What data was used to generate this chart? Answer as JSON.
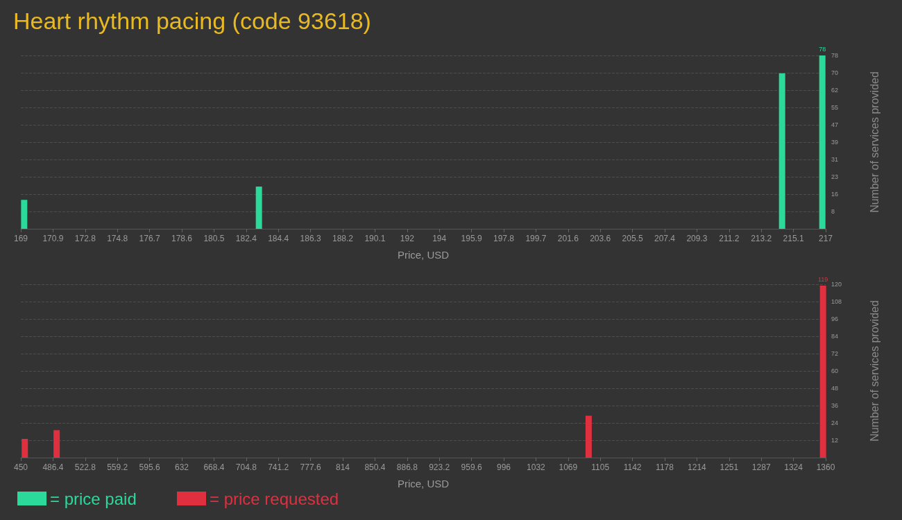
{
  "chart_data": [
    {
      "type": "bar",
      "title": "Heart rhythm pacing (code 93618)",
      "xlabel": "Price, USD",
      "ylabel": "Number of services provided",
      "x": [
        169.2,
        183.2,
        214.4,
        216.8
      ],
      "series": [
        {
          "name": "= price paid",
          "color": "#2bd99b",
          "values": [
            13,
            19,
            70,
            78
          ],
          "value_labels": [
            null,
            null,
            null,
            "78"
          ]
        }
      ],
      "xlim": [
        169,
        217
      ],
      "xticks": [
        169,
        {
          "value": 170.92,
          "label": "170.9"
        },
        {
          "value": 172.84,
          "label": "172.8"
        },
        {
          "value": 174.76,
          "label": "174.8"
        },
        {
          "value": 176.68,
          "label": "176.7"
        },
        178.6,
        {
          "value": 180.52,
          "label": "180.5"
        },
        {
          "value": 182.44,
          "label": "182.4"
        },
        {
          "value": 184.36,
          "label": "184.4"
        },
        {
          "value": 186.28,
          "label": "186.3"
        },
        188.2,
        {
          "value": 190.12,
          "label": "190.1"
        },
        {
          "value": 192.04,
          "label": "192"
        },
        {
          "value": 193.96,
          "label": "194"
        },
        {
          "value": 195.88,
          "label": "195.9"
        },
        197.8,
        {
          "value": 199.72,
          "label": "199.7"
        },
        {
          "value": 201.64,
          "label": "201.6"
        },
        {
          "value": 203.56,
          "label": "203.6"
        },
        {
          "value": 205.48,
          "label": "205.5"
        },
        207.4,
        {
          "value": 209.32,
          "label": "209.3"
        },
        {
          "value": 211.24,
          "label": "211.2"
        },
        {
          "value": 213.16,
          "label": "213.2"
        },
        {
          "value": 215.08,
          "label": "215.1"
        },
        217
      ],
      "ylim": [
        0,
        78
      ],
      "yticks": [
        {
          "value": 7.8,
          "label": "8"
        },
        {
          "value": 15.6,
          "label": "16"
        },
        {
          "value": 23.4,
          "label": "23"
        },
        {
          "value": 31.2,
          "label": "31"
        },
        39,
        {
          "value": 46.8,
          "label": "47"
        },
        {
          "value": 54.6,
          "label": "55"
        },
        {
          "value": 62.4,
          "label": "62"
        },
        {
          "value": 70.2,
          "label": "70"
        },
        78
      ],
      "grid": "y",
      "legend": "bottom left"
    },
    {
      "type": "bar",
      "xlabel": "Price, USD",
      "ylabel": "Number of services provided",
      "x": [
        454.5,
        490.5,
        1092,
        1357
      ],
      "series": [
        {
          "name": "= price requested",
          "color": "#e0303f",
          "values": [
            13,
            19,
            29,
            119
          ],
          "value_labels": [
            null,
            null,
            null,
            "119"
          ]
        }
      ],
      "xlim": [
        450,
        1360
      ],
      "xticks": [
        450,
        486.4,
        522.8,
        559.2,
        595.6,
        632,
        668.4,
        704.8,
        741.2,
        777.6,
        814,
        850.4,
        886.8,
        923.2,
        959.6,
        996,
        {
          "value": 1032.4,
          "label": "1032"
        },
        {
          "value": 1068.8,
          "label": "1069"
        },
        {
          "value": 1105.2,
          "label": "1105"
        },
        {
          "value": 1141.6,
          "label": "1142"
        },
        1178,
        {
          "value": 1214.4,
          "label": "1214"
        },
        {
          "value": 1250.8,
          "label": "1251"
        },
        {
          "value": 1287.2,
          "label": "1287"
        },
        {
          "value": 1323.6,
          "label": "1324"
        },
        1360
      ],
      "ylim": [
        0,
        120
      ],
      "yticks": [
        12,
        24,
        36,
        48,
        60,
        72,
        84,
        96,
        108,
        120
      ],
      "grid": "y",
      "legend": "bottom left"
    }
  ]
}
